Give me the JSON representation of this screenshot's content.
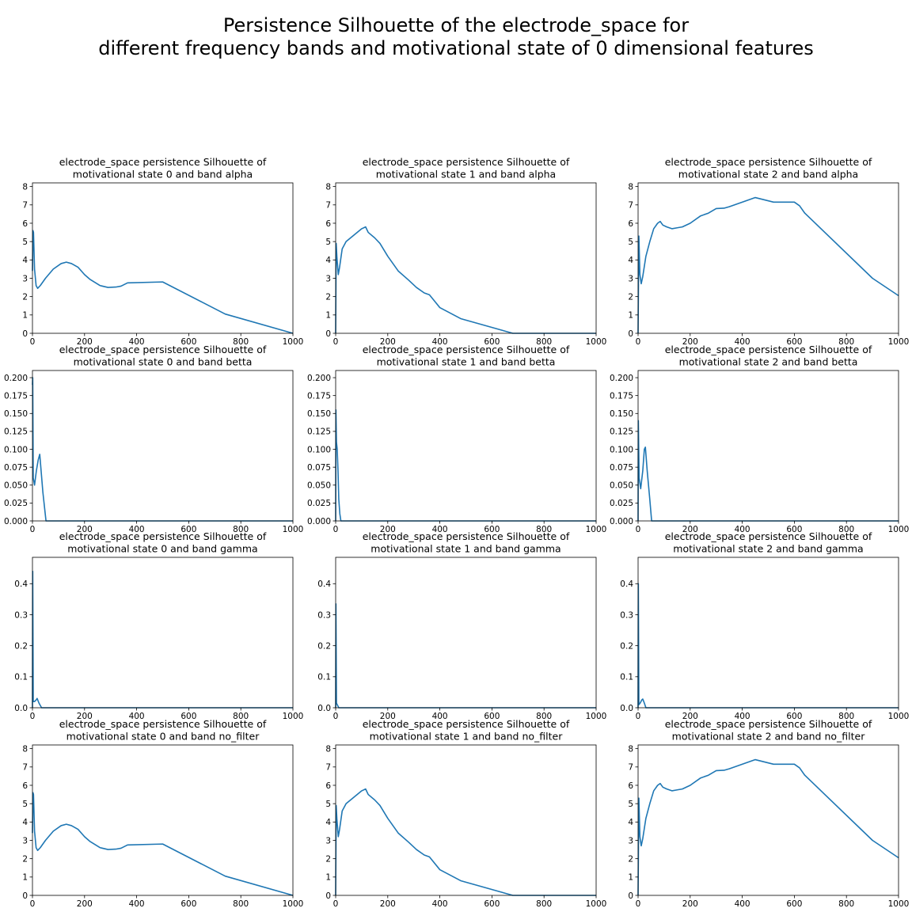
{
  "figure": {
    "title_lines": [
      "Persistence Silhouette of the electrode_space for",
      "different frequency bands and motivational state of 0 dimensional features"
    ],
    "line_color": "#1f77b4",
    "axis_color": "#000000"
  },
  "chart_data": [
    {
      "type": "line",
      "title": [
        "electrode_space persistence Silhouette of",
        "motivational state 0 and band alpha"
      ],
      "xlabel": "",
      "ylabel": "",
      "xlim": [
        0,
        1000
      ],
      "ylim": [
        0,
        8.2
      ],
      "xticks": [
        0,
        200,
        400,
        600,
        800,
        1000
      ],
      "yticks": [
        0,
        1,
        2,
        3,
        4,
        5,
        6,
        7,
        8
      ],
      "grid": false,
      "x": [
        0,
        2,
        4,
        8,
        14,
        20,
        30,
        50,
        80,
        110,
        130,
        150,
        175,
        200,
        220,
        260,
        290,
        320,
        340,
        365,
        500,
        740,
        1000
      ],
      "y": [
        3.4,
        5.6,
        5.5,
        3.5,
        2.6,
        2.45,
        2.6,
        3.0,
        3.5,
        3.8,
        3.88,
        3.8,
        3.6,
        3.2,
        2.95,
        2.6,
        2.5,
        2.52,
        2.57,
        2.75,
        2.8,
        1.05,
        0.0
      ]
    },
    {
      "type": "line",
      "title": [
        "electrode_space persistence Silhouette of",
        "motivational state 1 and band alpha"
      ],
      "xlabel": "",
      "ylabel": "",
      "xlim": [
        0,
        1000
      ],
      "ylim": [
        0,
        8.2
      ],
      "xticks": [
        0,
        200,
        400,
        600,
        800,
        1000
      ],
      "yticks": [
        0,
        1,
        2,
        3,
        4,
        5,
        6,
        7,
        8
      ],
      "grid": false,
      "x": [
        0,
        2,
        5,
        10,
        15,
        25,
        40,
        70,
        100,
        115,
        125,
        150,
        170,
        200,
        240,
        280,
        310,
        340,
        360,
        400,
        480,
        680,
        1000
      ],
      "y": [
        0.0,
        4.9,
        4.1,
        3.2,
        3.6,
        4.6,
        5.0,
        5.35,
        5.7,
        5.8,
        5.5,
        5.2,
        4.9,
        4.2,
        3.4,
        2.9,
        2.5,
        2.2,
        2.1,
        1.4,
        0.8,
        0.0,
        0.0
      ]
    },
    {
      "type": "line",
      "title": [
        "electrode_space persistence Silhouette of",
        "motivational state 2 and band alpha"
      ],
      "xlabel": "",
      "ylabel": "",
      "xlim": [
        0,
        1000
      ],
      "ylim": [
        0,
        8.2
      ],
      "xticks": [
        0,
        200,
        400,
        600,
        800,
        1000
      ],
      "yticks": [
        0,
        1,
        2,
        3,
        4,
        5,
        6,
        7,
        8
      ],
      "grid": false,
      "x": [
        0,
        3,
        7,
        12,
        18,
        30,
        45,
        60,
        75,
        85,
        95,
        110,
        130,
        150,
        170,
        200,
        240,
        270,
        300,
        330,
        350,
        450,
        520,
        600,
        620,
        640,
        900,
        1000
      ],
      "y": [
        0.0,
        5.3,
        3.2,
        2.7,
        3.1,
        4.2,
        5.0,
        5.7,
        6.0,
        6.1,
        5.9,
        5.8,
        5.7,
        5.75,
        5.8,
        6.0,
        6.4,
        6.55,
        6.8,
        6.82,
        6.9,
        7.4,
        7.15,
        7.15,
        6.95,
        6.55,
        3.0,
        2.05
      ]
    },
    {
      "type": "line",
      "title": [
        "electrode_space persistence Silhouette of",
        "motivational state 0 and band betta"
      ],
      "xlabel": "",
      "ylabel": "",
      "xlim": [
        0,
        1000
      ],
      "ylim": [
        0,
        0.21
      ],
      "xticks": [
        0,
        200,
        400,
        600,
        800,
        1000
      ],
      "yticks": [
        0.0,
        0.025,
        0.05,
        0.075,
        0.1,
        0.125,
        0.15,
        0.175,
        0.2
      ],
      "grid": false,
      "x": [
        0,
        1,
        3,
        8,
        15,
        22,
        28,
        40,
        52,
        1000
      ],
      "y": [
        0.19,
        0.2,
        0.06,
        0.05,
        0.07,
        0.085,
        0.093,
        0.04,
        0.0,
        0.0
      ]
    },
    {
      "type": "line",
      "title": [
        "electrode_space persistence Silhouette of",
        "motivational state 1 and band betta"
      ],
      "xlabel": "",
      "ylabel": "",
      "xlim": [
        0,
        1000
      ],
      "ylim": [
        0,
        0.21
      ],
      "xticks": [
        0,
        200,
        400,
        600,
        800,
        1000
      ],
      "yticks": [
        0.0,
        0.025,
        0.05,
        0.075,
        0.1,
        0.125,
        0.15,
        0.175,
        0.2
      ],
      "grid": false,
      "x": [
        0,
        1,
        3,
        6,
        9,
        12,
        16,
        20,
        1000
      ],
      "y": [
        0.0,
        0.155,
        0.11,
        0.1,
        0.07,
        0.03,
        0.01,
        0.0,
        0.0
      ]
    },
    {
      "type": "line",
      "title": [
        "electrode_space persistence Silhouette of",
        "motivational state 2 and band betta"
      ],
      "xlabel": "",
      "ylabel": "",
      "xlim": [
        0,
        1000
      ],
      "ylim": [
        0,
        0.21
      ],
      "xticks": [
        0,
        200,
        400,
        600,
        800,
        1000
      ],
      "yticks": [
        0.0,
        0.025,
        0.05,
        0.075,
        0.1,
        0.125,
        0.15,
        0.175,
        0.2
      ],
      "grid": false,
      "x": [
        0,
        1,
        4,
        10,
        18,
        24,
        28,
        35,
        45,
        52,
        1000
      ],
      "y": [
        0.0,
        0.14,
        0.06,
        0.045,
        0.07,
        0.1,
        0.103,
        0.07,
        0.03,
        0.0,
        0.0
      ]
    },
    {
      "type": "line",
      "title": [
        "electrode_space persistence Silhouette of",
        "motivational state 0 and band gamma"
      ],
      "xlabel": "",
      "ylabel": "",
      "xlim": [
        0,
        1000
      ],
      "ylim": [
        0,
        0.485
      ],
      "xticks": [
        0,
        200,
        400,
        600,
        800,
        1000
      ],
      "yticks": [
        0.0,
        0.1,
        0.2,
        0.3,
        0.4
      ],
      "grid": false,
      "x": [
        0,
        1,
        3,
        8,
        14,
        18,
        25,
        35,
        1000
      ],
      "y": [
        0.0,
        0.44,
        0.02,
        0.02,
        0.025,
        0.03,
        0.015,
        0.0,
        0.0
      ]
    },
    {
      "type": "line",
      "title": [
        "electrode_space persistence Silhouette of",
        "motivational state 1 and band gamma"
      ],
      "xlabel": "",
      "ylabel": "",
      "xlim": [
        0,
        1000
      ],
      "ylim": [
        0,
        0.485
      ],
      "xticks": [
        0,
        200,
        400,
        600,
        800,
        1000
      ],
      "yticks": [
        0.0,
        0.1,
        0.2,
        0.3,
        0.4
      ],
      "grid": false,
      "x": [
        0,
        1,
        3,
        6,
        12,
        1000
      ],
      "y": [
        0.0,
        0.335,
        0.015,
        0.01,
        0.0,
        0.0
      ]
    },
    {
      "type": "line",
      "title": [
        "electrode_space persistence Silhouette of",
        "motivational state 2 and band gamma"
      ],
      "xlabel": "",
      "ylabel": "",
      "xlim": [
        0,
        1000
      ],
      "ylim": [
        0,
        0.485
      ],
      "xticks": [
        0,
        200,
        400,
        600,
        800,
        1000
      ],
      "yticks": [
        0.0,
        0.1,
        0.2,
        0.3,
        0.4
      ],
      "grid": false,
      "x": [
        0,
        1,
        3,
        8,
        14,
        18,
        24,
        30,
        1000
      ],
      "y": [
        0.0,
        0.4,
        0.01,
        0.015,
        0.025,
        0.028,
        0.015,
        0.0,
        0.0
      ]
    },
    {
      "type": "line",
      "title": [
        "electrode_space persistence Silhouette of",
        "motivational state 0 and band no_filter"
      ],
      "xlabel": "",
      "ylabel": "",
      "xlim": [
        0,
        1000
      ],
      "ylim": [
        0,
        8.2
      ],
      "xticks": [
        0,
        200,
        400,
        600,
        800,
        1000
      ],
      "yticks": [
        0,
        1,
        2,
        3,
        4,
        5,
        6,
        7,
        8
      ],
      "grid": false,
      "x": [
        0,
        2,
        4,
        8,
        14,
        20,
        30,
        50,
        80,
        110,
        130,
        150,
        175,
        200,
        220,
        260,
        290,
        320,
        340,
        365,
        500,
        740,
        1000
      ],
      "y": [
        3.4,
        5.6,
        5.5,
        3.5,
        2.6,
        2.45,
        2.6,
        3.0,
        3.5,
        3.8,
        3.88,
        3.8,
        3.6,
        3.2,
        2.95,
        2.6,
        2.5,
        2.52,
        2.57,
        2.75,
        2.8,
        1.05,
        0.0
      ]
    },
    {
      "type": "line",
      "title": [
        "electrode_space persistence Silhouette of",
        "motivational state 1 and band no_filter"
      ],
      "xlabel": "",
      "ylabel": "",
      "xlim": [
        0,
        1000
      ],
      "ylim": [
        0,
        8.2
      ],
      "xticks": [
        0,
        200,
        400,
        600,
        800,
        1000
      ],
      "yticks": [
        0,
        1,
        2,
        3,
        4,
        5,
        6,
        7,
        8
      ],
      "grid": false,
      "x": [
        0,
        2,
        5,
        10,
        15,
        25,
        40,
        70,
        100,
        115,
        125,
        150,
        170,
        200,
        240,
        280,
        310,
        340,
        360,
        400,
        480,
        680,
        1000
      ],
      "y": [
        0.0,
        4.9,
        4.1,
        3.2,
        3.6,
        4.6,
        5.0,
        5.35,
        5.7,
        5.8,
        5.5,
        5.2,
        4.9,
        4.2,
        3.4,
        2.9,
        2.5,
        2.2,
        2.1,
        1.4,
        0.8,
        0.0,
        0.0
      ]
    },
    {
      "type": "line",
      "title": [
        "electrode_space persistence Silhouette of",
        "motivational state 2 and band no_filter"
      ],
      "xlabel": "",
      "ylabel": "",
      "xlim": [
        0,
        1000
      ],
      "ylim": [
        0,
        8.2
      ],
      "xticks": [
        0,
        200,
        400,
        600,
        800,
        1000
      ],
      "yticks": [
        0,
        1,
        2,
        3,
        4,
        5,
        6,
        7,
        8
      ],
      "grid": false,
      "x": [
        0,
        3,
        7,
        12,
        18,
        30,
        45,
        60,
        75,
        85,
        95,
        110,
        130,
        150,
        170,
        200,
        240,
        270,
        300,
        330,
        350,
        450,
        520,
        600,
        620,
        640,
        900,
        1000
      ],
      "y": [
        0.0,
        5.3,
        3.2,
        2.7,
        3.1,
        4.2,
        5.0,
        5.7,
        6.0,
        6.1,
        5.9,
        5.8,
        5.7,
        5.75,
        5.8,
        6.0,
        6.4,
        6.55,
        6.8,
        6.82,
        6.9,
        7.4,
        7.15,
        7.15,
        6.95,
        6.55,
        3.0,
        2.05
      ]
    }
  ]
}
